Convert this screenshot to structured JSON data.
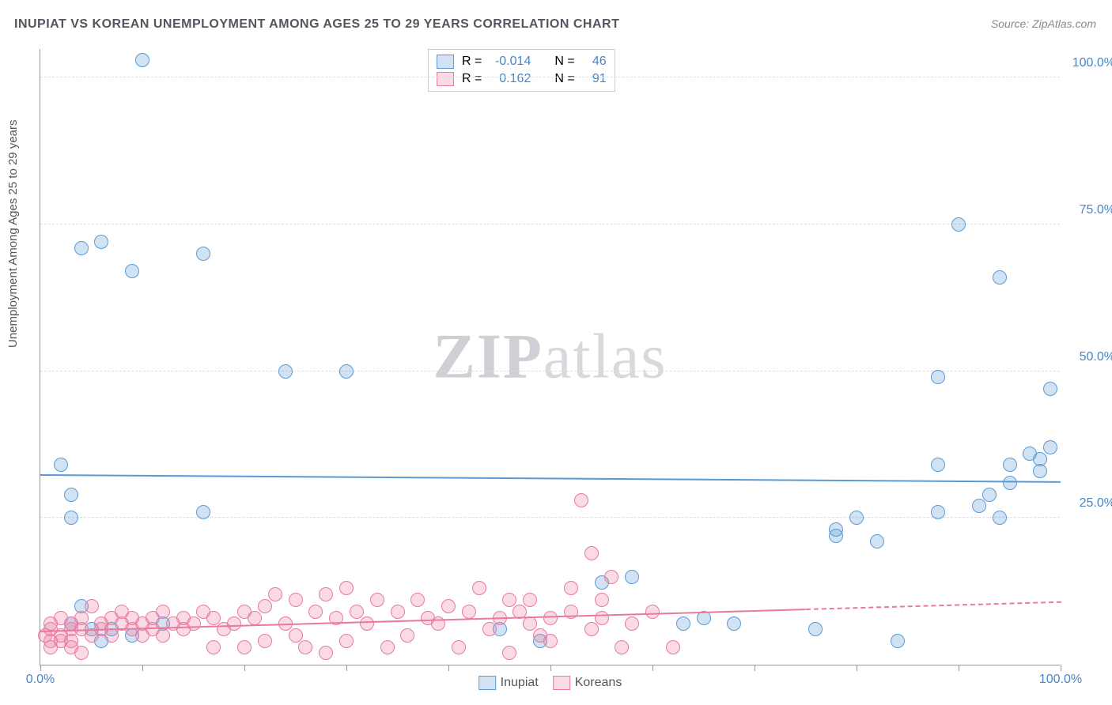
{
  "title": "INUPIAT VS KOREAN UNEMPLOYMENT AMONG AGES 25 TO 29 YEARS CORRELATION CHART",
  "source": "Source: ZipAtlas.com",
  "watermark_bold": "ZIP",
  "watermark_light": "atlas",
  "chart": {
    "type": "scatter",
    "y_label": "Unemployment Among Ages 25 to 29 years",
    "xlim": [
      0,
      100
    ],
    "ylim": [
      0,
      105
    ],
    "x_ticks": [
      0,
      10,
      20,
      30,
      40,
      50,
      60,
      70,
      80,
      90,
      100
    ],
    "x_tick_labels": {
      "0": "0.0%",
      "100": "100.0%"
    },
    "y_gridlines": [
      25,
      50,
      75,
      100
    ],
    "y_tick_labels": {
      "25": "25.0%",
      "50": "50.0%",
      "75": "75.0%",
      "100": "100.0%"
    },
    "point_radius": 9,
    "background_color": "#ffffff",
    "grid_color": "#dcdce2",
    "series": [
      {
        "name": "Inupiat",
        "color": "#5a9bd5",
        "fill": "rgba(90,155,213,0.28)",
        "stroke": "#5a9bd5",
        "r_value": "-0.014",
        "n_value": "46",
        "trend": {
          "y_start": 32.2,
          "y_end": 31.0,
          "solid_until": 100,
          "stroke_width": 2
        },
        "points": [
          [
            10,
            103
          ],
          [
            4,
            71
          ],
          [
            6,
            72
          ],
          [
            9,
            67
          ],
          [
            16,
            70
          ],
          [
            2,
            34
          ],
          [
            3,
            29
          ],
          [
            3,
            25
          ],
          [
            24,
            50
          ],
          [
            30,
            50
          ],
          [
            16,
            26
          ],
          [
            4,
            10
          ],
          [
            3,
            7
          ],
          [
            5,
            6
          ],
          [
            7,
            6
          ],
          [
            6,
            4
          ],
          [
            9,
            5
          ],
          [
            12,
            7
          ],
          [
            55,
            14
          ],
          [
            58,
            15
          ],
          [
            49,
            4
          ],
          [
            63,
            7
          ],
          [
            65,
            8
          ],
          [
            68,
            7
          ],
          [
            45,
            6
          ],
          [
            78,
            23
          ],
          [
            78,
            22
          ],
          [
            80,
            25
          ],
          [
            82,
            21
          ],
          [
            84,
            4
          ],
          [
            88,
            34
          ],
          [
            88,
            49
          ],
          [
            90,
            75
          ],
          [
            94,
            66
          ],
          [
            92,
            27
          ],
          [
            93,
            29
          ],
          [
            94,
            25
          ],
          [
            95,
            34
          ],
          [
            95,
            31
          ],
          [
            97,
            36
          ],
          [
            98,
            33
          ],
          [
            98,
            35
          ],
          [
            99,
            37
          ],
          [
            99,
            47
          ],
          [
            88,
            26
          ],
          [
            76,
            6
          ]
        ]
      },
      {
        "name": "Koreans",
        "color": "#e87aa0",
        "fill": "rgba(232,122,160,0.28)",
        "stroke": "#e87aa0",
        "r_value": "0.162",
        "n_value": "91",
        "trend": {
          "y_start": 5.5,
          "y_end": 10.5,
          "solid_until": 75,
          "stroke_width": 2
        },
        "points": [
          [
            1,
            6
          ],
          [
            1,
            7
          ],
          [
            2,
            5
          ],
          [
            2,
            8
          ],
          [
            3,
            6
          ],
          [
            3,
            7
          ],
          [
            3,
            4
          ],
          [
            4,
            8
          ],
          [
            4,
            6
          ],
          [
            5,
            10
          ],
          [
            5,
            5
          ],
          [
            6,
            7
          ],
          [
            6,
            6
          ],
          [
            7,
            8
          ],
          [
            7,
            5
          ],
          [
            8,
            7
          ],
          [
            8,
            9
          ],
          [
            9,
            6
          ],
          [
            9,
            8
          ],
          [
            10,
            7
          ],
          [
            10,
            5
          ],
          [
            11,
            8
          ],
          [
            11,
            6
          ],
          [
            12,
            9
          ],
          [
            12,
            5
          ],
          [
            13,
            7
          ],
          [
            14,
            8
          ],
          [
            14,
            6
          ],
          [
            15,
            7
          ],
          [
            16,
            9
          ],
          [
            17,
            3
          ],
          [
            17,
            8
          ],
          [
            18,
            6
          ],
          [
            19,
            7
          ],
          [
            20,
            9
          ],
          [
            20,
            3
          ],
          [
            21,
            8
          ],
          [
            22,
            10
          ],
          [
            22,
            4
          ],
          [
            23,
            12
          ],
          [
            24,
            7
          ],
          [
            25,
            11
          ],
          [
            25,
            5
          ],
          [
            26,
            3
          ],
          [
            27,
            9
          ],
          [
            28,
            12
          ],
          [
            28,
            2
          ],
          [
            29,
            8
          ],
          [
            30,
            13
          ],
          [
            30,
            4
          ],
          [
            31,
            9
          ],
          [
            32,
            7
          ],
          [
            33,
            11
          ],
          [
            34,
            3
          ],
          [
            35,
            9
          ],
          [
            36,
            5
          ],
          [
            37,
            11
          ],
          [
            38,
            8
          ],
          [
            39,
            7
          ],
          [
            40,
            10
          ],
          [
            41,
            3
          ],
          [
            42,
            9
          ],
          [
            43,
            13
          ],
          [
            44,
            6
          ],
          [
            45,
            8
          ],
          [
            46,
            2
          ],
          [
            47,
            9
          ],
          [
            48,
            11
          ],
          [
            49,
            5
          ],
          [
            50,
            8
          ],
          [
            52,
            13
          ],
          [
            53,
            28
          ],
          [
            54,
            19
          ],
          [
            55,
            8
          ],
          [
            56,
            15
          ],
          [
            57,
            3
          ],
          [
            55,
            11
          ],
          [
            54,
            6
          ],
          [
            52,
            9
          ],
          [
            50,
            4
          ],
          [
            48,
            7
          ],
          [
            46,
            11
          ],
          [
            62,
            3
          ],
          [
            60,
            9
          ],
          [
            58,
            7
          ],
          [
            2,
            4
          ],
          [
            3,
            3
          ],
          [
            4,
            2
          ],
          [
            1,
            3
          ],
          [
            0.5,
            5
          ],
          [
            1,
            4
          ]
        ]
      }
    ],
    "legend": {
      "inupiat_label": "Inupiat",
      "koreans_label": "Koreans",
      "r_label": "R =",
      "n_label": "N ="
    }
  },
  "colors": {
    "blue_text": "#4a85c4",
    "pink_text": "#d65f8a",
    "axis_text": "#555560"
  }
}
